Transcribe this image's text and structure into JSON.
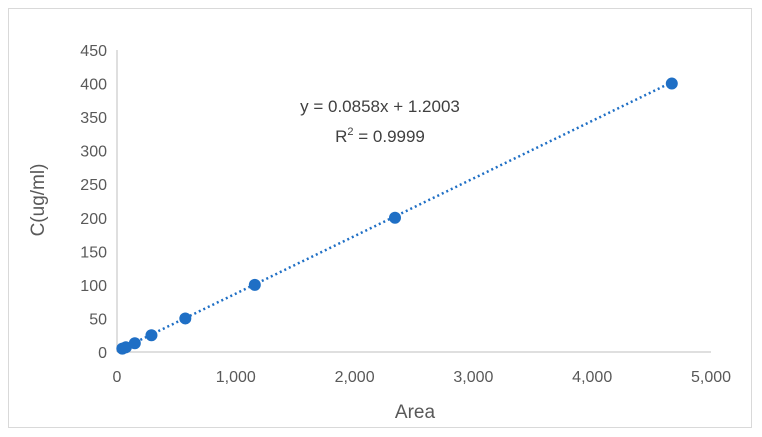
{
  "chart_data": {
    "type": "scatter",
    "title": "",
    "xlabel": "Area",
    "ylabel": "C(ug/ml)",
    "xlim": [
      0,
      5000
    ],
    "ylim": [
      0,
      450
    ],
    "xticks": [
      0,
      1000,
      2000,
      3000,
      4000,
      5000
    ],
    "xtick_labels": [
      "0",
      "1,000",
      "2,000",
      "3,000",
      "4,000",
      "5,000"
    ],
    "yticks": [
      0,
      50,
      100,
      150,
      200,
      250,
      300,
      350,
      400,
      450
    ],
    "ytick_labels": [
      "0",
      "50",
      "100",
      "150",
      "200",
      "250",
      "300",
      "350",
      "400",
      "450"
    ],
    "grid": false,
    "legend": "none",
    "series": [
      {
        "x": [
          45,
          75,
          150,
          290,
          575,
          1160,
          2340,
          4670
        ],
        "y": [
          5,
          7,
          13,
          25,
          50,
          100,
          200,
          400
        ],
        "color": "#1f6fc5"
      }
    ],
    "trendline": {
      "type": "linear",
      "slope": 0.0858,
      "intercept": 1.2003,
      "style": "dotted",
      "color": "#1f6fc5",
      "equation_label": "y = 0.0858x + 1.2003",
      "r2_prefix": "R",
      "r2_exponent": "2",
      "r2_value": " = 0.9999"
    },
    "colors": {
      "axis": "#bfbfbf",
      "text": "#595959"
    }
  }
}
